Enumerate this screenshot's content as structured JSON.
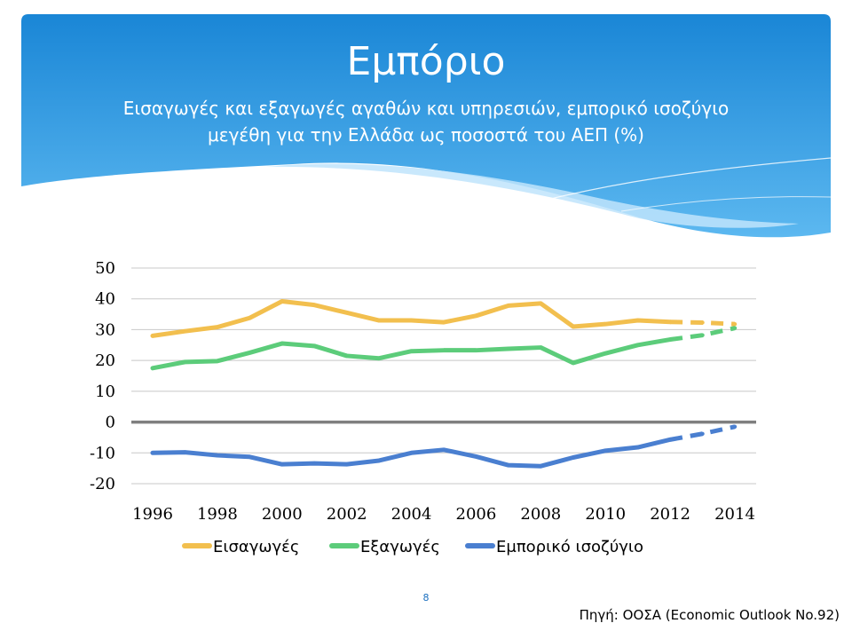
{
  "slide": {
    "title": "Εμπόριο",
    "subtitle_lines": [
      "Εισαγωγές και εξαγωγές αγαθών και υπηρεσιών, εμπορικό ισοζύγιο",
      "μεγέθη για την Ελλάδα ως ποσοστά του ΑΕΠ (%)"
    ],
    "page_number": "8",
    "source": "Πηγή: ΟΟΣΑ (Economic Outlook No.92)"
  },
  "colors": {
    "header_top": "#1a86d6",
    "header_bottom": "#5cb8f0",
    "wave_light": "#bfe4fb",
    "gridline": "#c8c8c8",
    "zero_line": "#7f7f7f"
  },
  "chart_data": {
    "type": "line",
    "title": "",
    "xlabel": "",
    "ylabel": "",
    "ylim": [
      -20,
      50
    ],
    "y_ticks": [
      -20,
      -10,
      0,
      10,
      20,
      30,
      40,
      50
    ],
    "y_tick_labels": [
      "-20",
      "-10",
      "0",
      "10",
      "20",
      "30",
      "40",
      "50"
    ],
    "x_ticks": [
      1996,
      1998,
      2000,
      2002,
      2004,
      2006,
      2008,
      2010,
      2012,
      2014
    ],
    "x_tick_labels": [
      "1996",
      "1998",
      "2000",
      "2002",
      "2004",
      "2006",
      "2008",
      "2010",
      "2012",
      "2014"
    ],
    "x": [
      1996,
      1997,
      1998,
      1999,
      2000,
      2001,
      2002,
      2003,
      2004,
      2005,
      2006,
      2007,
      2008,
      2009,
      2010,
      2011,
      2012,
      2013,
      2014
    ],
    "grid": true,
    "legend": "bottom",
    "projection_from": 2012,
    "series": [
      {
        "name": "Εισαγωγές",
        "color": "#f2bf4e",
        "values": [
          28.0,
          29.5,
          30.8,
          33.8,
          39.2,
          38.0,
          35.5,
          33.0,
          33.0,
          32.4,
          34.5,
          37.8,
          38.5,
          31.0,
          31.8,
          33.0,
          32.5,
          32.3,
          31.8
        ]
      },
      {
        "name": "Εξαγωγές",
        "color": "#5ccc7a",
        "values": [
          17.5,
          19.5,
          19.8,
          22.5,
          25.5,
          24.7,
          21.5,
          20.7,
          23.0,
          23.3,
          23.3,
          23.8,
          24.2,
          19.2,
          22.3,
          25.0,
          26.8,
          28.2,
          30.5
        ]
      },
      {
        "name": "Εμπορικό ισοζύγιο",
        "color": "#4a7fd0",
        "values": [
          -10.0,
          -9.8,
          -10.8,
          -11.3,
          -13.7,
          -13.4,
          -13.7,
          -12.5,
          -10.0,
          -9.0,
          -11.2,
          -14.0,
          -14.3,
          -11.5,
          -9.3,
          -8.2,
          -5.7,
          -3.8,
          -1.5
        ]
      }
    ]
  }
}
